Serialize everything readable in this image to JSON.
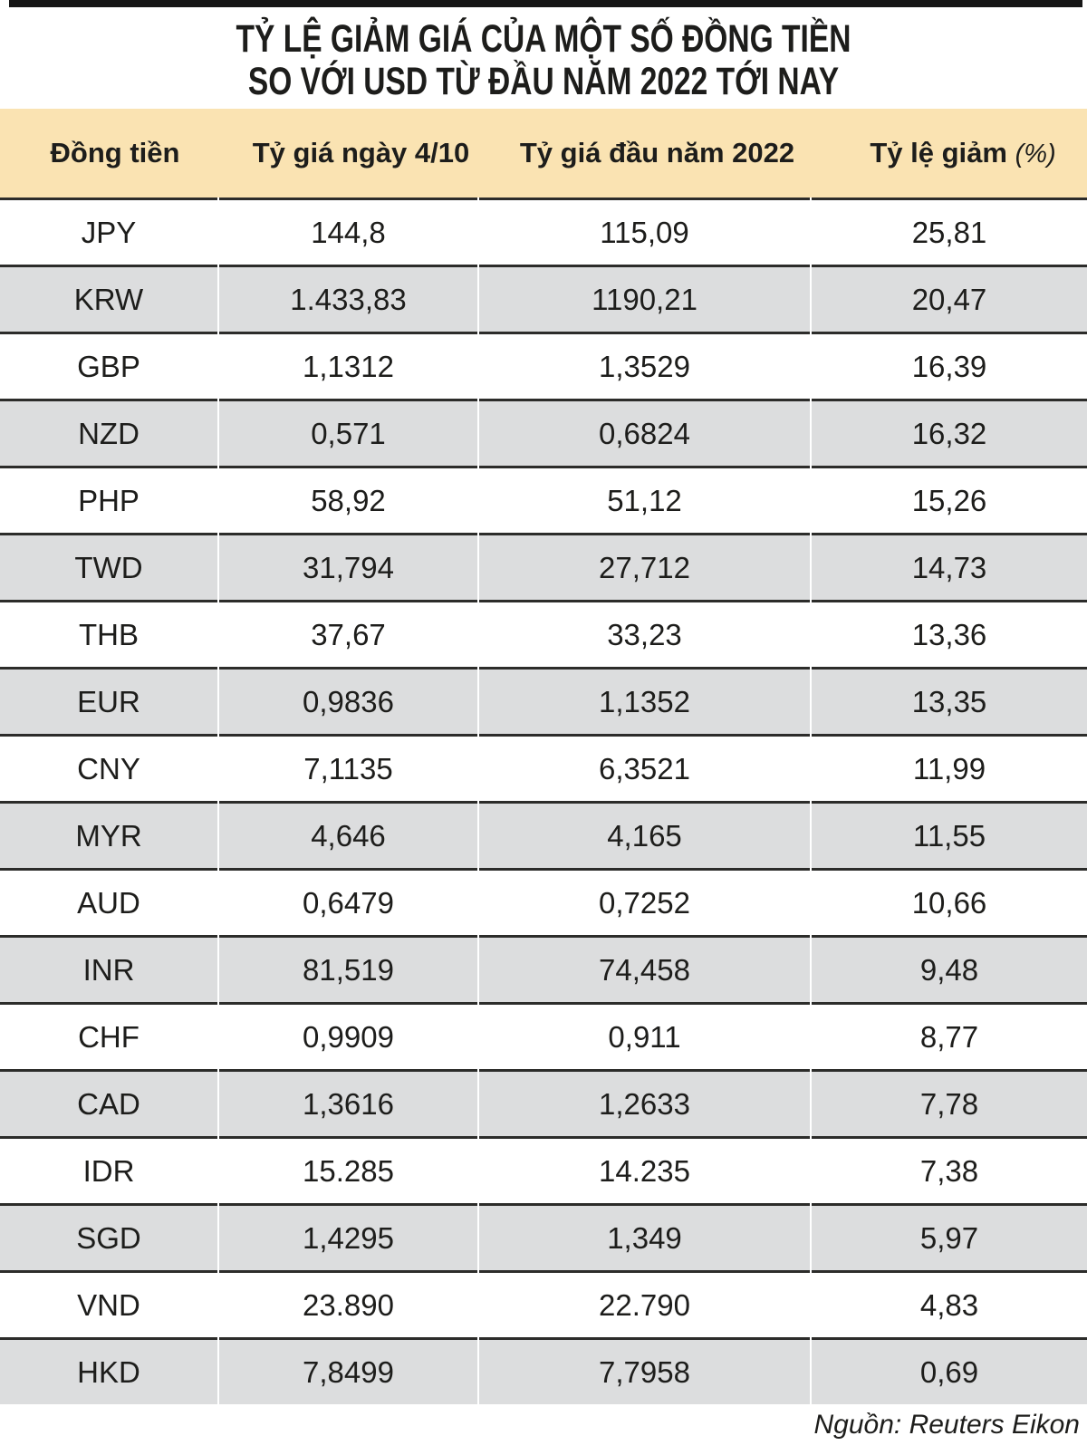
{
  "title": {
    "line1": "TỶ LỆ GIẢM GIÁ CỦA MỘT SỐ ĐỒNG TIỀN",
    "line2": "SO VỚI USD TỪ ĐẦU NĂM 2022 TỚI NAY"
  },
  "header": {
    "col4_label": "Tỷ lệ giảm",
    "col4_unit": "(%)"
  },
  "chart_data": {
    "type": "table",
    "title": "TỶ LỆ GIẢM GIÁ CỦA MỘT SỐ ĐỒNG TIỀN SO VỚI USD TỪ ĐẦU NĂM 2022 TỚI NAY",
    "columns": [
      "Đồng tiền",
      "Tỷ giá ngày 4/10",
      "Tỷ giá đầu năm 2022",
      "Tỷ lệ giảm (%)"
    ],
    "rows": [
      [
        "JPY",
        "144,8",
        "115,09",
        "25,81"
      ],
      [
        "KRW",
        "1.433,83",
        "1190,21",
        "20,47"
      ],
      [
        "GBP",
        "1,1312",
        "1,3529",
        "16,39"
      ],
      [
        "NZD",
        "0,571",
        "0,6824",
        "16,32"
      ],
      [
        "PHP",
        "58,92",
        "51,12",
        "15,26"
      ],
      [
        "TWD",
        "31,794",
        "27,712",
        "14,73"
      ],
      [
        "THB",
        "37,67",
        "33,23",
        "13,36"
      ],
      [
        "EUR",
        "0,9836",
        "1,1352",
        "13,35"
      ],
      [
        "CNY",
        "7,1135",
        "6,3521",
        "11,99"
      ],
      [
        "MYR",
        "4,646",
        "4,165",
        "11,55"
      ],
      [
        "AUD",
        "0,6479",
        "0,7252",
        "10,66"
      ],
      [
        "INR",
        "81,519",
        "74,458",
        "9,48"
      ],
      [
        "CHF",
        "0,9909",
        "0,911",
        "8,77"
      ],
      [
        "CAD",
        "1,3616",
        "1,2633",
        "7,78"
      ],
      [
        "IDR",
        "15.285",
        "14.235",
        "7,38"
      ],
      [
        "SGD",
        "1,4295",
        "1,349",
        "5,97"
      ],
      [
        "VND",
        "23.890",
        "22.790",
        "4,83"
      ],
      [
        "HKD",
        "7,8499",
        "7,7958",
        "0,69"
      ]
    ]
  },
  "source": {
    "text": "Nguồn: Reuters Eikon"
  },
  "colors": {
    "header_bg": "#FAE3B2",
    "alt_row_bg": "#DCDDDE",
    "separator": "#2C2C2A",
    "top_bar": "#161616",
    "text": "#1D1D1B"
  }
}
